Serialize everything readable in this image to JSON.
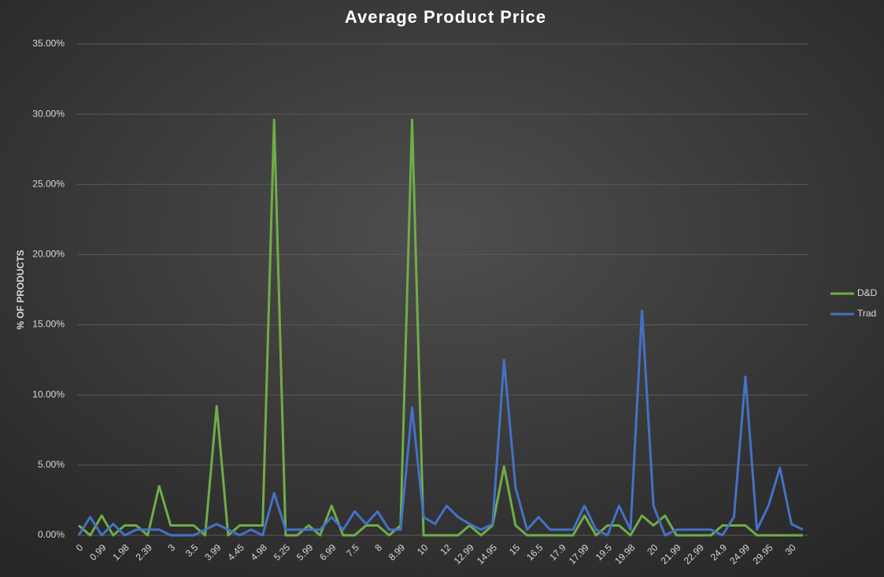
{
  "chart_data": {
    "type": "line",
    "title": "Average Product Price",
    "y_label": "% OF PRODUCTS",
    "categories": [
      "0",
      null,
      "0.99",
      null,
      "1.98",
      null,
      "2.39",
      null,
      "3",
      null,
      "3.5",
      null,
      "3.99",
      null,
      "4.45",
      null,
      "4.98",
      null,
      "5.25",
      null,
      "5.99",
      null,
      "6.99",
      null,
      "7.5",
      null,
      "8",
      null,
      "8.99",
      null,
      "10",
      null,
      "12",
      null,
      "12.99",
      null,
      "14.95",
      null,
      "15",
      null,
      "16.5",
      null,
      "17.9",
      null,
      "17.99",
      null,
      "19.5",
      null,
      "19.98",
      null,
      "20",
      null,
      "21.99",
      null,
      "22.99",
      null,
      "24.9",
      null,
      "24.99",
      null,
      "29.95",
      null,
      "30",
      null
    ],
    "series": [
      {
        "name": "D&D",
        "color": "#70ad47",
        "values": [
          0.7,
          0,
          1.4,
          0,
          0.7,
          0.7,
          0,
          3.5,
          0.7,
          0.7,
          0.7,
          0,
          9.2,
          0,
          0.7,
          0.7,
          0.7,
          29.6,
          0,
          0,
          0.7,
          0,
          2.1,
          0,
          0,
          0.7,
          0.7,
          0,
          0.7,
          29.6,
          0,
          0,
          0,
          0,
          0.7,
          0,
          0.7,
          4.9,
          0.7,
          0,
          0,
          0,
          0,
          0,
          1.4,
          0,
          0.7,
          0.7,
          0,
          1.4,
          0.7,
          1.4,
          0,
          0,
          0,
          0,
          0.7,
          0.7,
          0.7,
          0,
          0,
          0,
          0,
          0
        ]
      },
      {
        "name": "Trad",
        "color": "#4472c4",
        "values": [
          0,
          1.3,
          0,
          0.8,
          0,
          0.4,
          0.4,
          0.4,
          0,
          0,
          0,
          0.4,
          0.8,
          0.4,
          0,
          0.4,
          0,
          3.0,
          0.4,
          0.4,
          0.4,
          0.4,
          1.3,
          0.4,
          1.7,
          0.8,
          1.7,
          0.4,
          0.4,
          9.1,
          1.3,
          0.8,
          2.1,
          1.3,
          0.8,
          0.4,
          0.8,
          12.5,
          3.4,
          0.4,
          1.3,
          0.4,
          0.4,
          0.4,
          2.1,
          0.4,
          0,
          2.1,
          0.4,
          16.0,
          2.1,
          0,
          0.4,
          0.4,
          0.4,
          0.4,
          0,
          1.3,
          11.3,
          0.4,
          2.1,
          4.8,
          0.8,
          0.4
        ]
      }
    ],
    "ylim": [
      0,
      35
    ],
    "yticks": [
      {
        "value": 0,
        "label": "0.00%"
      },
      {
        "value": 5,
        "label": "5.00%"
      },
      {
        "value": 10,
        "label": "10.00%"
      },
      {
        "value": 15,
        "label": "15.00%"
      },
      {
        "value": 20,
        "label": "20.00%"
      },
      {
        "value": 25,
        "label": "25.00%"
      },
      {
        "value": 30,
        "label": "30.00%"
      },
      {
        "value": 35,
        "label": "35.00%"
      }
    ],
    "grid": true,
    "legend": "right"
  }
}
